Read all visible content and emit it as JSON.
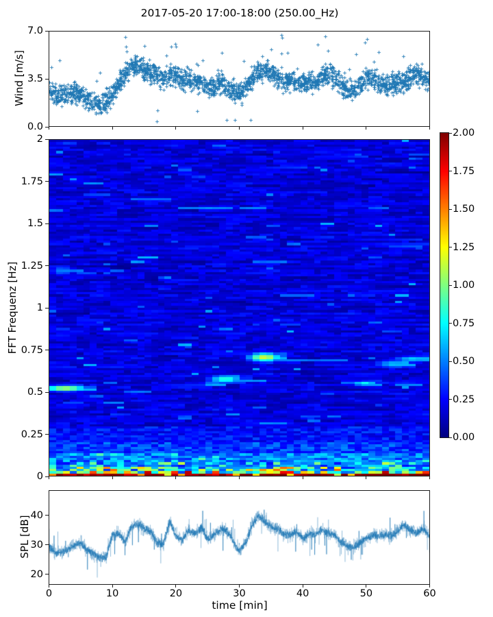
{
  "title": "2017-05-20 17:00-18:00 (250.00_Hz)",
  "colorbar": {
    "colormap": "jet",
    "min": 0.0,
    "max": 2.0,
    "tick_labels": [
      "2.00",
      "1.75",
      "1.50",
      "1.25",
      "1.00",
      "0.75",
      "0.50",
      "0.25",
      "0.00"
    ]
  },
  "chart_data": [
    {
      "id": "wind",
      "type": "scatter",
      "ylabel": "Wind [m/s]",
      "yticks": [
        0.0,
        3.5,
        7.0
      ],
      "ytick_labels": [
        "0.0",
        "3.5",
        "7.0"
      ],
      "ylim": [
        0,
        7
      ],
      "xlim": [
        0,
        60
      ],
      "grid": false,
      "marker": "+",
      "color": "#1f77b4",
      "n_points": 2400,
      "scatter_sigma": 1.05,
      "x_minutes": [
        0,
        1,
        2,
        3,
        4,
        5,
        6,
        7,
        8,
        9,
        10,
        11,
        12,
        13,
        14,
        15,
        16,
        17,
        18,
        19,
        20,
        21,
        22,
        23,
        24,
        25,
        26,
        27,
        28,
        29,
        30,
        31,
        32,
        33,
        34,
        35,
        36,
        37,
        38,
        39,
        40,
        41,
        42,
        43,
        44,
        45,
        46,
        47,
        48,
        49,
        50,
        51,
        52,
        53,
        54,
        55,
        56,
        57,
        58,
        59,
        60
      ],
      "mean_by_minute": [
        2.5,
        2.3,
        2.2,
        2.4,
        2.5,
        2.3,
        2.0,
        1.8,
        1.6,
        1.8,
        2.4,
        3.2,
        4.0,
        4.4,
        4.5,
        4.1,
        3.9,
        3.7,
        3.4,
        3.8,
        3.7,
        3.4,
        3.5,
        3.2,
        3.3,
        2.9,
        3.0,
        3.2,
        3.0,
        2.6,
        2.4,
        2.8,
        3.5,
        4.1,
        4.3,
        3.9,
        3.6,
        3.3,
        3.4,
        3.3,
        3.2,
        3.1,
        3.3,
        3.6,
        3.9,
        3.6,
        3.2,
        2.8,
        2.7,
        3.1,
        3.6,
        3.5,
        3.3,
        3.0,
        3.0,
        3.2,
        3.3,
        3.6,
        3.9,
        3.6,
        3.4
      ]
    },
    {
      "id": "spectrogram",
      "type": "heatmap",
      "ylabel": "FFT Frequenz [Hz]",
      "yticks": [
        0,
        0.25,
        0.5,
        0.75,
        1,
        1.25,
        1.5,
        1.75,
        2
      ],
      "ytick_labels": [
        "0",
        "0.25",
        "0.5",
        "0.75",
        "1",
        "1.25",
        "1.5",
        "1.75",
        "2"
      ],
      "xlim": [
        0,
        60
      ],
      "ylim": [
        0,
        2
      ],
      "clim": [
        0,
        2
      ],
      "colormap": "jet",
      "background_level_range": [
        0.07,
        0.35
      ],
      "low_freq_energy": "high energy band below 0.15 Hz; values near 2.0 (dark red) below 0.03 Hz, mixed yellow/orange/cyan speckle up to 0.15 Hz, elevated cyan speckle up to 0.3 Hz",
      "features": [
        {
          "t": 2.5,
          "tw": 2.6,
          "f": 0.52,
          "fh": 0.013,
          "v": 1.15
        },
        {
          "t": 2.0,
          "tw": 1.4,
          "f": 1.22,
          "fh": 0.022,
          "v": 0.5
        },
        {
          "t": 13.0,
          "tw": 1.2,
          "f": 0.5,
          "fh": 0.01,
          "v": 0.5
        },
        {
          "t": 27.8,
          "tw": 2.0,
          "f": 0.575,
          "fh": 0.018,
          "v": 0.85
        },
        {
          "t": 25.8,
          "tw": 1.4,
          "f": 0.545,
          "fh": 0.01,
          "v": 0.7
        },
        {
          "t": 34.0,
          "tw": 1.9,
          "f": 0.705,
          "fh": 0.02,
          "v": 1.2
        },
        {
          "t": 36.5,
          "tw": 1.0,
          "f": 0.72,
          "fh": 0.01,
          "v": 0.6
        },
        {
          "t": 49.8,
          "tw": 1.6,
          "f": 0.55,
          "fh": 0.012,
          "v": 0.8
        },
        {
          "t": 54.5,
          "tw": 2.4,
          "f": 0.665,
          "fh": 0.018,
          "v": 0.65
        },
        {
          "t": 57.5,
          "tw": 2.4,
          "f": 0.695,
          "fh": 0.014,
          "v": 0.7
        },
        {
          "t": 44.0,
          "tw": 1.2,
          "f": 0.49,
          "fh": 0.01,
          "v": 0.45
        },
        {
          "t": 40.5,
          "tw": 1.0,
          "f": 0.35,
          "fh": 0.01,
          "v": 0.45
        }
      ]
    },
    {
      "id": "spl",
      "type": "line",
      "ylabel": "SPL [dB]",
      "xlabel": "time [min]",
      "yticks": [
        20,
        30,
        40
      ],
      "ytick_labels": [
        "20",
        "30",
        "40"
      ],
      "xticks": [
        0,
        10,
        20,
        30,
        40,
        50,
        60
      ],
      "xtick_labels": [
        "0",
        "10",
        "20",
        "30",
        "40",
        "50",
        "60"
      ],
      "ylim": [
        16.5,
        48.6
      ],
      "xlim": [
        0,
        60
      ],
      "color": "#1f77b4",
      "jitter_db": 2.2,
      "x_minutes": [
        0,
        1,
        2,
        3,
        4,
        5,
        6,
        7,
        8,
        9,
        10,
        11,
        12,
        13,
        14,
        15,
        16,
        17,
        18,
        19,
        20,
        21,
        22,
        23,
        24,
        25,
        26,
        27,
        28,
        29,
        30,
        31,
        32,
        33,
        34,
        35,
        36,
        37,
        38,
        39,
        40,
        41,
        42,
        43,
        44,
        45,
        46,
        47,
        48,
        49,
        50,
        51,
        52,
        53,
        54,
        55,
        56,
        57,
        58,
        59,
        60
      ],
      "mean_by_minute": [
        29.5,
        27,
        27.5,
        28.5,
        30,
        30.5,
        28,
        27,
        25.5,
        26,
        33.5,
        34,
        31,
        36.5,
        37,
        35.5,
        34.5,
        31,
        30,
        38,
        33,
        31.5,
        35,
        34,
        36,
        32,
        33.5,
        35.5,
        35,
        31.5,
        27.5,
        30.5,
        36.5,
        40,
        38,
        36.5,
        35.5,
        33.5,
        33.5,
        34.5,
        32,
        33.5,
        33.5,
        35,
        34,
        33.5,
        31,
        29.5,
        29,
        30.5,
        32,
        33.5,
        33,
        33.5,
        33,
        34.5,
        37,
        35,
        34,
        35.5,
        33
      ]
    }
  ]
}
